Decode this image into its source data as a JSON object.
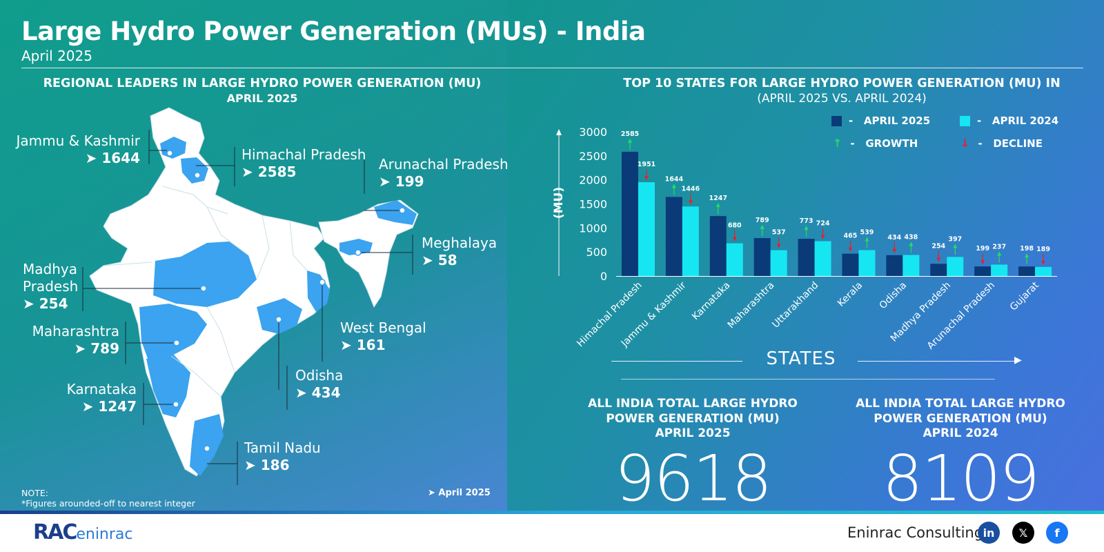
{
  "header": {
    "title": "Large Hydro Power Generation (MUs) - India",
    "subtitle": "April 2025"
  },
  "map_panel": {
    "title": "REGIONAL LEADERS IN LARGE HYDRO POWER GENERATION (MU)",
    "subtitle": "APRIL 2025",
    "regions": [
      {
        "name": "Jammu & Kashmir",
        "value": "1644"
      },
      {
        "name": "Himachal Pradesh",
        "value": "2585"
      },
      {
        "name": "Arunachal Pradesh",
        "value": "199"
      },
      {
        "name": "Meghalaya",
        "value": "58"
      },
      {
        "name": "Madhya Pradesh",
        "value": "254"
      },
      {
        "name": "West Bengal",
        "value": "161"
      },
      {
        "name": "Maharashtra",
        "value": "789"
      },
      {
        "name": "Odisha",
        "value": "434"
      },
      {
        "name": "Karnataka",
        "value": "1247"
      },
      {
        "name": "Tamil Nadu",
        "value": "186"
      }
    ],
    "note_line1": "NOTE:",
    "note_line2": "*Figures arounded-off to nearest integer",
    "date_tag": "April 2025"
  },
  "chart_panel": {
    "title": "TOP 10 STATES FOR LARGE HYDRO POWER GENERATION (MU) IN",
    "subtitle": "(APRIL 2025 VS. APRIL 2024)",
    "legend": {
      "april2025": "APRIL 2025",
      "april2024": "APRIL 2024",
      "growth": "GROWTH",
      "decline": "DECLINE",
      "dash": "-"
    },
    "states_label": "STATES"
  },
  "chart_data": {
    "type": "bar",
    "categories": [
      "Himachal Pradesh",
      "Jammu & Kashmir",
      "Karnataka",
      "Maharashtra",
      "Uttarakhand",
      "Kerala",
      "Odisha",
      "Madhya Pradesh",
      "Arunachal Pradesh",
      "Gujarat"
    ],
    "series": [
      {
        "name": "APRIL 2025",
        "values": [
          2585,
          1644,
          1247,
          789,
          773,
          465,
          434,
          254,
          199,
          198
        ],
        "color": "#0b3a78",
        "trend": [
          "growth",
          "growth",
          "growth",
          "growth",
          "growth",
          "decline",
          "decline",
          "decline",
          "decline",
          "growth"
        ]
      },
      {
        "name": "APRIL 2024",
        "values": [
          1951,
          1446,
          680,
          537,
          724,
          539,
          438,
          397,
          237,
          189
        ],
        "color": "#16e6f2",
        "trend": [
          "decline",
          "decline",
          "decline",
          "decline",
          "decline",
          "growth",
          "growth",
          "growth",
          "growth",
          "decline"
        ]
      }
    ],
    "ylabel": "(MU)",
    "xlabel": "STATES",
    "ylim": [
      0,
      3000
    ],
    "yticks": [
      0,
      500,
      1000,
      1500,
      2000,
      2500,
      3000
    ],
    "growth_color": "#22e05a",
    "decline_color": "#e8202a"
  },
  "totals": [
    {
      "title_line1": "ALL INDIA TOTAL LARGE HYDRO",
      "title_line2": "POWER GENERATION (MU)",
      "title_line3": "APRIL 2025",
      "value": "9618"
    },
    {
      "title_line1": "ALL INDIA TOTAL LARGE HYDRO",
      "title_line2": "POWER GENERATION (MU)",
      "title_line3": "APRIL 2024",
      "value": "8109"
    }
  ],
  "footer": {
    "logo_main": "RAC",
    "logo_sub": "eninrac",
    "company": "Eninrac Consulting",
    "social": [
      {
        "icon": "linkedin-icon",
        "glyph": "in",
        "color": "#1a4fa0"
      },
      {
        "icon": "x-icon",
        "glyph": "𝕏",
        "color": "#000000"
      },
      {
        "icon": "facebook-icon",
        "glyph": "f",
        "color": "#1877f2"
      }
    ]
  }
}
